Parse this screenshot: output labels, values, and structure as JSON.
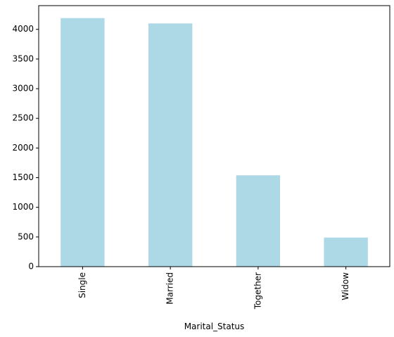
{
  "chart_data": {
    "type": "bar",
    "categories": [
      "Single",
      "Married",
      "Together",
      "Widow"
    ],
    "values": [
      4190,
      4100,
      1540,
      490
    ],
    "title": "",
    "xlabel": "Marital_Status",
    "ylabel": "",
    "ylim": [
      0,
      4400
    ],
    "yticks": [
      0,
      500,
      1000,
      1500,
      2000,
      2500,
      3000,
      3500,
      4000
    ],
    "bar_color": "#add8e6",
    "grid": false,
    "legend": "none"
  }
}
